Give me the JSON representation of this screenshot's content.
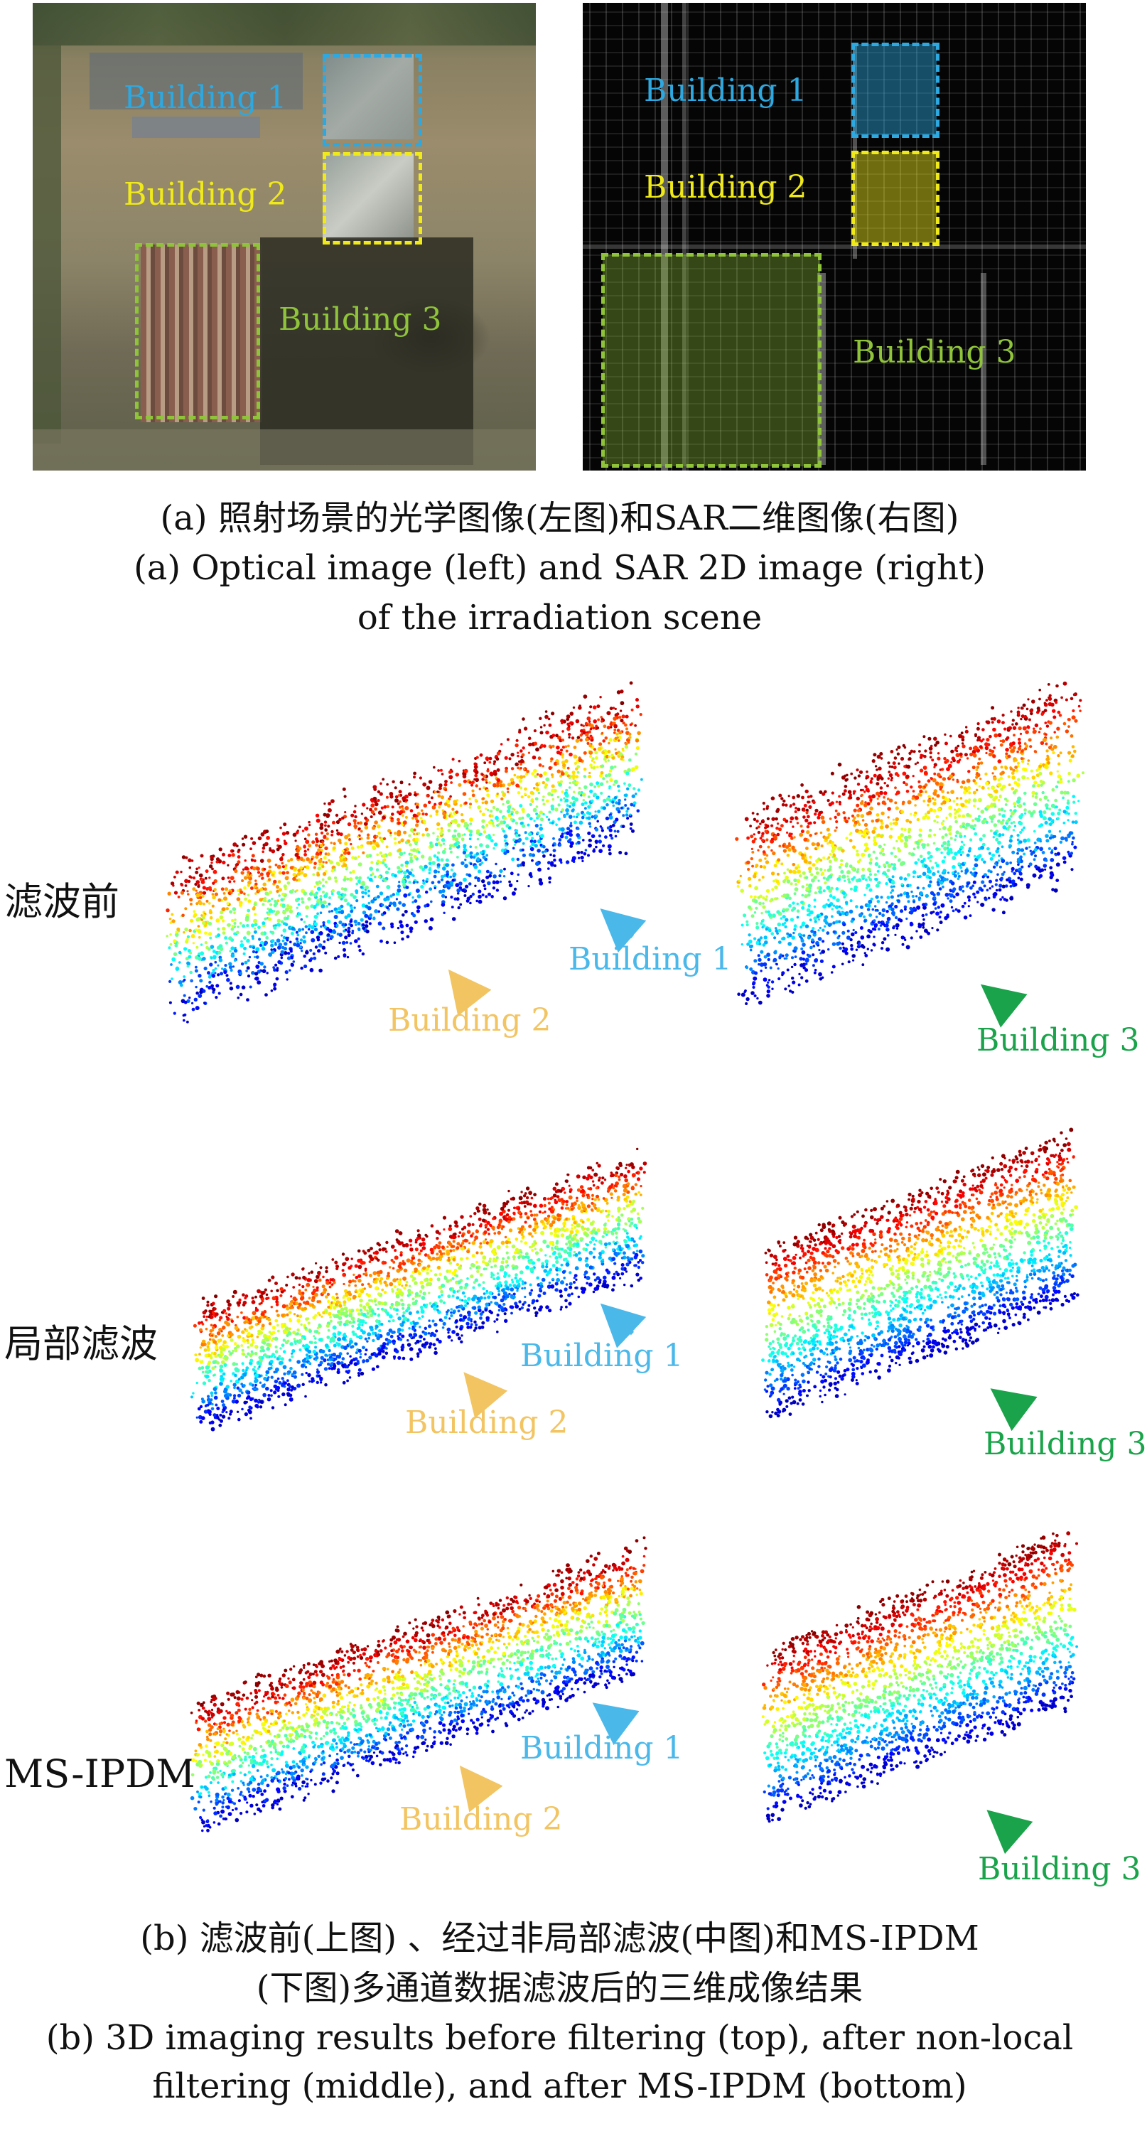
{
  "panel_a": {
    "optical": {
      "labels": [
        "Building 1",
        "Building 2",
        "Building 3"
      ],
      "colors": [
        "#2ea8e0",
        "#f0ea1a",
        "#8fc43a"
      ]
    },
    "sar": {
      "labels": [
        "Building 1",
        "Building 2",
        "Building 3"
      ],
      "colors": [
        "#2ea8e0",
        "#f0ea1a",
        "#8fc43a"
      ]
    },
    "caption_zh": "(a) 照射场景的光学图像(左图)和SAR二维图像(右图)",
    "caption_en_line1": "(a) Optical image (left) and SAR 2D image (right)",
    "caption_en_line2": "of the irradiation scene"
  },
  "panel_b": {
    "rows": [
      {
        "label": "滤波前",
        "left_labels": [
          "Building 1",
          "Building 2"
        ],
        "right_label": "Building 3"
      },
      {
        "label": "局部滤波",
        "left_labels": [
          "Building 1",
          "Building 2"
        ],
        "right_label": "Building 3"
      },
      {
        "label": "MS-IPDM",
        "left_labels": [
          "Building 1",
          "Building 2"
        ],
        "right_label": "Building 3"
      }
    ],
    "arrow_colors": {
      "building1": "#4bb8ea",
      "building2": "#f2c462",
      "building3": "#1aa34a"
    },
    "caption_zh_line1": "(b) 滤波前(上图) 、经过非局部滤波(中图)和MS-IPDM",
    "caption_zh_line2": "(下图)多通道数据滤波后的三维成像结果",
    "caption_en_line1": "(b) 3D imaging results before filtering (top), after non-local",
    "caption_en_line2": "filtering (middle), and after MS-IPDM (bottom)"
  }
}
